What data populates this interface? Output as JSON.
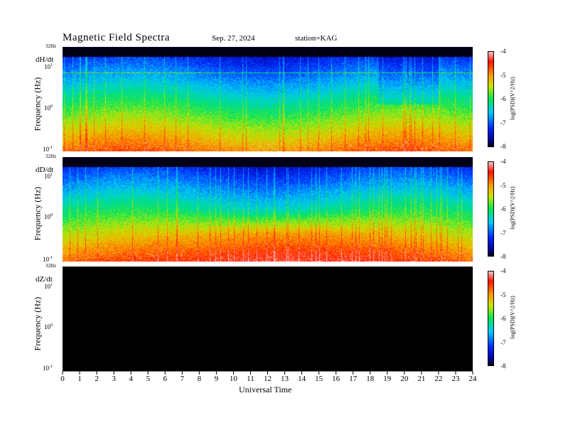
{
  "header": {
    "title": "Magnetic  Field  Spectra",
    "date": "Sep. 27, 2024",
    "station": "station=KAG"
  },
  "panels": [
    {
      "id": "dh",
      "label": "dH/dt",
      "ylabel": "Frequency  (Hz)",
      "top_freq": "32Hz",
      "has_data": true
    },
    {
      "id": "dd",
      "label": "dD/dt",
      "ylabel": "Frequency  (Hz)",
      "top_freq": "32Hz",
      "has_data": true
    },
    {
      "id": "dz",
      "label": "dZ/dt",
      "ylabel": "Frequency  (Hz)",
      "top_freq": "32Hz",
      "has_data": false
    }
  ],
  "colorbar": {
    "label": "log(PSD)(V^2/Hz)",
    "ticks": [
      "-4",
      "-5",
      "-6",
      "-7",
      "-8"
    ],
    "range": [
      -8,
      -4
    ]
  },
  "xaxis": {
    "label": "Universal  Time",
    "ticks": [
      "0",
      "1",
      "2",
      "3",
      "4",
      "5",
      "6",
      "7",
      "8",
      "9",
      "10",
      "11",
      "12",
      "13",
      "14",
      "15",
      "16",
      "17",
      "18",
      "19",
      "20",
      "21",
      "22",
      "23",
      "24"
    ]
  },
  "chart_data": {
    "type": "heatmap",
    "title": "Magnetic  Field  Spectra",
    "xlabel": "Universal  Time",
    "ylabel": "Frequency  (Hz)",
    "xlim": [
      0,
      24
    ],
    "ylim_hz": [
      0.1,
      32
    ],
    "y_scale": "log",
    "y_tick_labels": [
      "10^-1",
      "10^0",
      "10^1"
    ],
    "color_scale": "log(PSD)(V^2/Hz)",
    "clim": [
      -8,
      -4
    ],
    "series": [
      {
        "name": "dH/dt",
        "description": "broadband PSD ~-6 to -4.5 below 1 Hz, -7 to -6 near 1-10 Hz, < -7.5 above 15 Hz; constant line near 8 Hz",
        "status": "data"
      },
      {
        "name": "dD/dt",
        "description": "enhanced PSD (~-4.5) 0.3-3 Hz between 8 and 18 UT; < -7.5 above 15 Hz",
        "status": "data"
      },
      {
        "name": "dZ/dt",
        "description": "no data (black)",
        "status": "no-data"
      }
    ]
  }
}
